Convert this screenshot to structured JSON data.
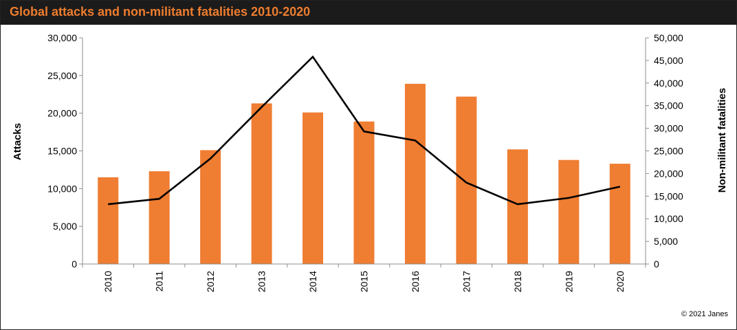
{
  "header": {
    "title": "Global attacks and non-militant fatalities 2010-2020"
  },
  "footer": {
    "copyright": "© 2021 Janes"
  },
  "colors": {
    "bar": "#ef7d32",
    "line": "#000000",
    "title_text": "#ef7d2e",
    "title_background": "#1b1b1b"
  },
  "chart_data": {
    "type": "bar",
    "title": "Global attacks and non-militant fatalities 2010-2020",
    "categories": [
      "2010",
      "2011",
      "2012",
      "2013",
      "2014",
      "2015",
      "2016",
      "2017",
      "2018",
      "2019",
      "2020"
    ],
    "series": [
      {
        "name": "",
        "type": "bar",
        "axis": "left",
        "values": [
          11500,
          12300,
          15100,
          21300,
          20100,
          18900,
          23900,
          22200,
          15200,
          13800,
          13300
        ]
      },
      {
        "name": "",
        "type": "line",
        "axis": "right",
        "values": [
          13200,
          14400,
          23300,
          34700,
          45800,
          29300,
          27300,
          18000,
          13200,
          14600,
          17100
        ]
      }
    ],
    "ylabel": "Attacks",
    "y2label": "Non-militant fatalities",
    "ylim": [
      0,
      30000
    ],
    "y2lim": [
      0,
      50000
    ],
    "yticks": [
      "0",
      "5,000",
      "10,000",
      "15,000",
      "20,000",
      "25,000",
      "30,000"
    ],
    "y2ticks": [
      "0",
      "5,000",
      "10,000",
      "15,000",
      "20,000",
      "25,000",
      "30,000",
      "35,000",
      "40,000",
      "45,000",
      "50,000"
    ],
    "grid": false,
    "legend": "none"
  }
}
